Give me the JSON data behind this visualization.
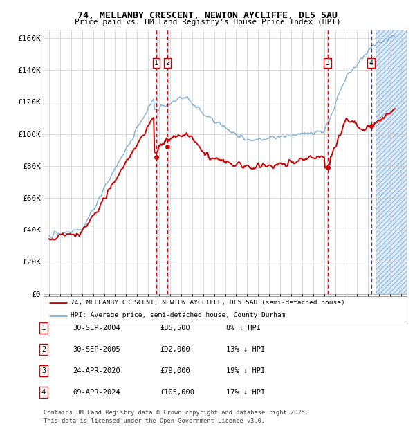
{
  "title_line1": "74, MELLANBY CRESCENT, NEWTON AYCLIFFE, DL5 5AU",
  "title_line2": "Price paid vs. HM Land Registry's House Price Index (HPI)",
  "ylabel_ticks": [
    "£0",
    "£20K",
    "£40K",
    "£60K",
    "£80K",
    "£100K",
    "£120K",
    "£140K",
    "£160K"
  ],
  "ytick_values": [
    0,
    20000,
    40000,
    60000,
    80000,
    100000,
    120000,
    140000,
    160000
  ],
  "xlim": [
    1994.5,
    2027.5
  ],
  "ylim": [
    0,
    165000
  ],
  "xticks": [
    1995,
    1996,
    1997,
    1998,
    1999,
    2000,
    2001,
    2002,
    2003,
    2004,
    2005,
    2006,
    2007,
    2008,
    2009,
    2010,
    2011,
    2012,
    2013,
    2014,
    2015,
    2016,
    2017,
    2018,
    2019,
    2020,
    2021,
    2022,
    2023,
    2024,
    2025,
    2026,
    2027
  ],
  "sale_dates": [
    2004.75,
    2005.75,
    2020.31,
    2024.27
  ],
  "sale_prices": [
    85500,
    92000,
    79000,
    105000
  ],
  "vline_color": "#dd0000",
  "hpi_color": "#7aaed4",
  "price_color": "#cc0000",
  "background_color": "#ffffff",
  "grid_color": "#cccccc",
  "future_shade_color": "#ddeeff",
  "legend_label_red": "74, MELLANBY CRESCENT, NEWTON AYCLIFFE, DL5 5AU (semi-detached house)",
  "legend_label_blue": "HPI: Average price, semi-detached house, County Durham",
  "table_data": [
    {
      "num": 1,
      "date": "30-SEP-2004",
      "price": "£85,500",
      "note": "8% ↓ HPI"
    },
    {
      "num": 2,
      "date": "30-SEP-2005",
      "price": "£92,000",
      "note": "13% ↓ HPI"
    },
    {
      "num": 3,
      "date": "24-APR-2020",
      "price": "£79,000",
      "note": "19% ↓ HPI"
    },
    {
      "num": 4,
      "date": "09-APR-2024",
      "price": "£105,000",
      "note": "17% ↓ HPI"
    }
  ],
  "footnote": "Contains HM Land Registry data © Crown copyright and database right 2025.\nThis data is licensed under the Open Government Licence v3.0.",
  "future_start": 2024.75,
  "vspan_alpha": 0.15
}
